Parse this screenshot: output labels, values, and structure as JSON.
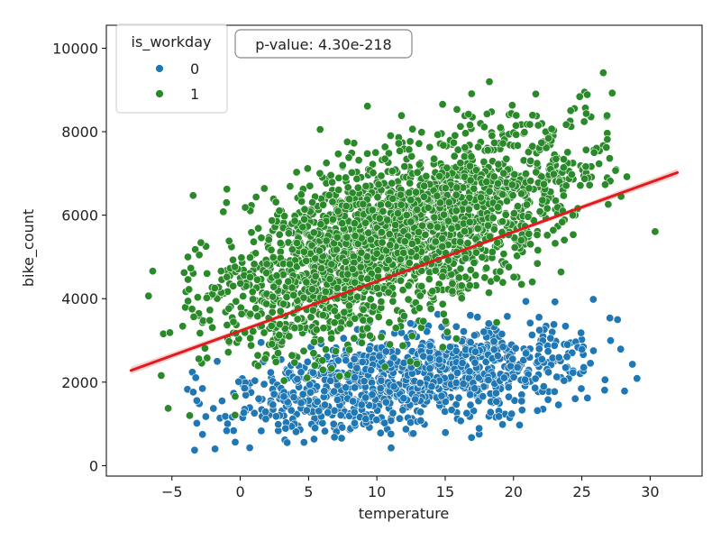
{
  "chart_data": {
    "type": "scatter",
    "title": "",
    "xlabel": "temperature",
    "ylabel": "bike_count",
    "xlim": [
      -9.8,
      33.8
    ],
    "ylim": [
      -250,
      10550
    ],
    "x_ticks": [
      -5,
      0,
      5,
      10,
      15,
      20,
      25,
      30
    ],
    "x_tick_labels": [
      "−5",
      "0",
      "5",
      "10",
      "15",
      "20",
      "25",
      "30"
    ],
    "y_ticks": [
      0,
      2000,
      4000,
      6000,
      8000,
      10000
    ],
    "y_tick_labels": [
      "0",
      "2000",
      "4000",
      "6000",
      "8000",
      "10000"
    ],
    "grid": false,
    "legend": {
      "title": "is_workday",
      "placement": "top-left",
      "entries": [
        {
          "label": "0",
          "color": "#1f77b4"
        },
        {
          "label": "1",
          "color": "#2a8a2a"
        }
      ]
    },
    "annotation": {
      "text": "p-value: 4.30e-218",
      "placement": "top-left, right of legend"
    },
    "series": [
      {
        "name": "0",
        "color": "#1f77b4",
        "n_points": 1050,
        "x_range": [
          -7.5,
          32
        ],
        "trend": {
          "intercept": 1500,
          "slope": 45
        },
        "y_spread_sd": 560,
        "y_min": 250
      },
      {
        "name": "1",
        "color": "#2a8a2a",
        "n_points": 2300,
        "x_range": [
          -8,
          31
        ],
        "trend": {
          "intercept": 4100,
          "slope": 120
        },
        "y_spread_sd": 1000,
        "y_max": 10200
      }
    ],
    "regression_line": {
      "color": "#e31a1c",
      "x": [
        -8,
        32
      ],
      "y": [
        2280,
        7020
      ],
      "ci_color": "#f4a6a6"
    }
  }
}
